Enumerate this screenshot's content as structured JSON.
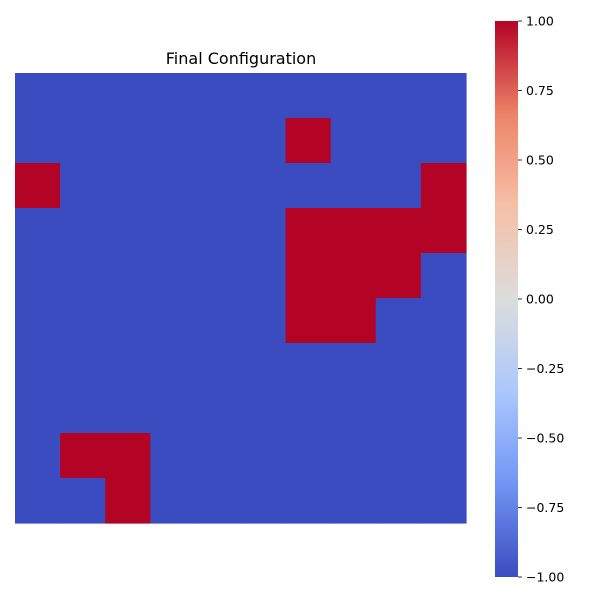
{
  "chart_data": {
    "type": "heatmap",
    "title": "Final Configuration",
    "xlabel": "",
    "ylabel": "",
    "grid": false,
    "colormap": "coolwarm",
    "vmin": -1,
    "vmax": 1,
    "rows": 10,
    "cols": 10,
    "values": [
      [
        -1,
        -1,
        -1,
        -1,
        -1,
        -1,
        -1,
        -1,
        -1,
        -1
      ],
      [
        -1,
        -1,
        -1,
        -1,
        -1,
        -1,
        1,
        -1,
        -1,
        -1
      ],
      [
        1,
        -1,
        -1,
        -1,
        -1,
        -1,
        -1,
        -1,
        -1,
        1
      ],
      [
        -1,
        -1,
        -1,
        -1,
        -1,
        -1,
        1,
        1,
        1,
        1
      ],
      [
        -1,
        -1,
        -1,
        -1,
        -1,
        -1,
        1,
        1,
        1,
        -1
      ],
      [
        -1,
        -1,
        -1,
        -1,
        -1,
        -1,
        1,
        1,
        -1,
        -1
      ],
      [
        -1,
        -1,
        -1,
        -1,
        -1,
        -1,
        -1,
        -1,
        -1,
        -1
      ],
      [
        -1,
        -1,
        -1,
        -1,
        -1,
        -1,
        -1,
        -1,
        -1,
        -1
      ],
      [
        -1,
        1,
        1,
        -1,
        -1,
        -1,
        -1,
        -1,
        -1,
        -1
      ],
      [
        -1,
        -1,
        1,
        -1,
        -1,
        -1,
        -1,
        -1,
        -1,
        -1
      ]
    ],
    "colorbar": {
      "ticks": [
        1.0,
        0.75,
        0.5,
        0.25,
        0.0,
        -0.25,
        -0.5,
        -0.75,
        -1.0
      ],
      "tick_labels": [
        "1.00",
        "0.75",
        "0.50",
        "0.25",
        "0.00",
        "−0.25",
        "−0.50",
        "−0.75",
        "−1.00"
      ],
      "colors": [
        "#3b4cc0",
        "#7396f5",
        "#aac7fd",
        "#dcdddd",
        "#f6bfa6",
        "#ee8468",
        "#b40426"
      ],
      "color_stops": [
        0,
        0.17,
        0.33,
        0.5,
        0.67,
        0.83,
        1
      ]
    }
  }
}
